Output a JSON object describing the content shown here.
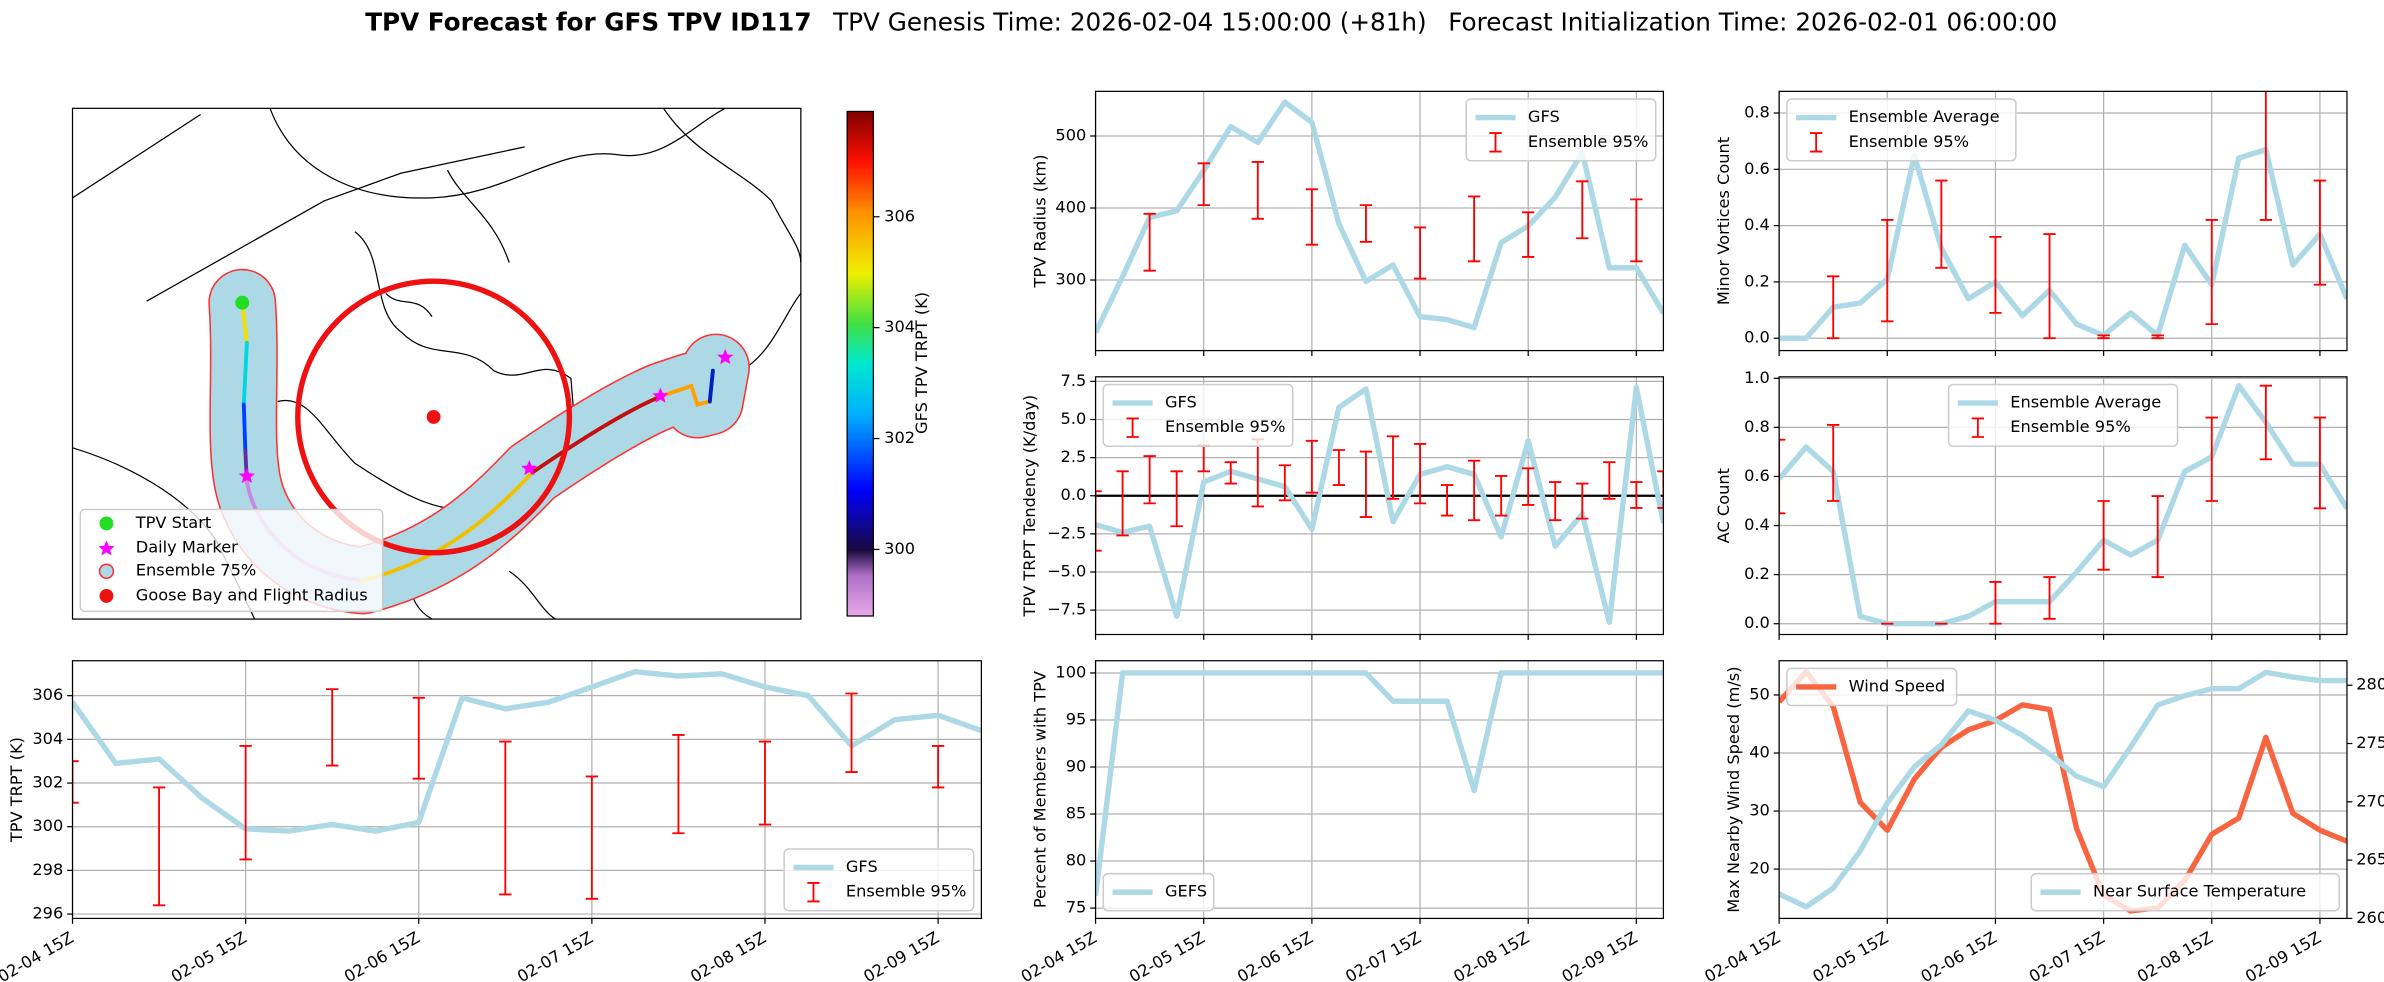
{
  "title": {
    "main": "TPV Forecast for GFS TPV ID117",
    "genesis": "TPV Genesis Time: 2026-02-04 15:00:00 (+81h)",
    "init": "Forecast Initialization Time: 2026-02-01 06:00:00"
  },
  "chart_data": [
    {
      "type": "map",
      "legend": [
        "TPV Start",
        "Daily Marker",
        "Ensemble 75%",
        "Goose Bay and Flight Radius"
      ],
      "colorbar": {
        "label": "GFS TPV TRPT (K)",
        "lim": [
          298.8,
          307.9
        ],
        "ticks": [
          300,
          302,
          304,
          306
        ]
      }
    },
    {
      "type": "line",
      "ylabel": "TPV Radius (km)",
      "grid": true,
      "legend": "upper right",
      "x": [
        "02-04 15Z",
        "02-04 21Z",
        "02-05 03Z",
        "02-05 09Z",
        "02-05 15Z",
        "02-05 21Z",
        "02-06 03Z",
        "02-06 09Z",
        "02-06 15Z",
        "02-06 21Z",
        "02-07 03Z",
        "02-07 09Z",
        "02-07 15Z",
        "02-07 21Z",
        "02-08 03Z",
        "02-08 09Z",
        "02-08 15Z",
        "02-08 21Z",
        "02-09 03Z",
        "02-09 09Z",
        "02-09 15Z",
        "02-09 21Z"
      ],
      "xlim": [
        "02-04 15Z",
        "02-09 21Z"
      ],
      "xticks": [
        "02-04 15Z",
        "02-05 15Z",
        "02-06 15Z",
        "02-07 15Z",
        "02-08 15Z",
        "02-09 15Z"
      ],
      "ylim": [
        202,
        562
      ],
      "yticks": [
        300,
        400,
        500
      ],
      "series": [
        {
          "name": "GFS",
          "color": "#add8e6",
          "values": [
            227,
            305,
            387,
            396,
            452,
            513,
            491,
            547,
            519,
            378,
            298,
            321,
            249,
            245,
            234,
            352,
            375,
            415,
            477,
            317,
            317,
            254
          ]
        }
      ],
      "errorbars": {
        "name": "Ensemble 95%",
        "color": "#ff0000",
        "x": [
          "02-05 03Z",
          "02-05 15Z",
          "02-06 03Z",
          "02-06 15Z",
          "02-07 03Z",
          "02-07 15Z",
          "02-08 03Z",
          "02-08 15Z",
          "02-09 03Z",
          "02-09 15Z"
        ],
        "lower": [
          313,
          404,
          385,
          349,
          353,
          302,
          326,
          332,
          358,
          326
        ],
        "upper": [
          392,
          462,
          464,
          426,
          404,
          373,
          416,
          394,
          437,
          412
        ]
      }
    },
    {
      "type": "line",
      "ylabel": "Minor Vortices Count",
      "grid": true,
      "legend": "upper left",
      "x": [
        "02-04 15Z",
        "02-04 21Z",
        "02-05 03Z",
        "02-05 09Z",
        "02-05 15Z",
        "02-05 21Z",
        "02-06 03Z",
        "02-06 09Z",
        "02-06 15Z",
        "02-06 21Z",
        "02-07 03Z",
        "02-07 09Z",
        "02-07 15Z",
        "02-07 21Z",
        "02-08 03Z",
        "02-08 09Z",
        "02-08 15Z",
        "02-08 21Z",
        "02-09 03Z",
        "02-09 09Z",
        "02-09 15Z",
        "02-09 21Z"
      ],
      "xlim": [
        "02-04 15Z",
        "02-09 21Z"
      ],
      "xticks": [
        "02-04 15Z",
        "02-05 15Z",
        "02-06 15Z",
        "02-07 15Z",
        "02-08 15Z",
        "02-09 15Z"
      ],
      "ylim": [
        -0.044,
        0.877
      ],
      "yticks": [
        {
          "value": 0,
          "label": "0.0"
        },
        0.2,
        0.4,
        0.6,
        0.8
      ],
      "series": [
        {
          "name": "Ensemble Average",
          "color": "#add8e6",
          "values": [
            0,
            0,
            0.11,
            0.125,
            0.21,
            0.65,
            0.32,
            0.14,
            0.2,
            0.08,
            0.17,
            0.05,
            0.01,
            0.09,
            0.01,
            0.33,
            0.19,
            0.64,
            0.67,
            0.26,
            0.37,
            0.14
          ]
        }
      ],
      "errorbars": {
        "name": "Ensemble 95%",
        "color": "#ff0000",
        "x": [
          "02-05 03Z",
          "02-05 15Z",
          "02-06 03Z",
          "02-06 15Z",
          "02-07 03Z",
          "02-07 15Z",
          "02-08 03Z",
          "02-08 15Z",
          "02-09 03Z",
          "02-09 15Z"
        ],
        "lower": [
          0,
          0.06,
          0.25,
          0.09,
          0,
          0,
          0,
          0.05,
          0.42,
          0.19
        ],
        "upper": [
          0.22,
          0.42,
          0.56,
          0.36,
          0.37,
          0.01,
          0.01,
          0.42,
          0.93,
          0.56
        ]
      }
    },
    {
      "type": "line",
      "ylabel": "TPV TRPT Tendency (K/day)",
      "grid": true,
      "legend": "upper left",
      "reference_line": 0,
      "x": [
        "02-04 15Z",
        "02-04 21Z",
        "02-05 03Z",
        "02-05 09Z",
        "02-05 15Z",
        "02-05 21Z",
        "02-06 03Z",
        "02-06 09Z",
        "02-06 15Z",
        "02-06 21Z",
        "02-07 03Z",
        "02-07 09Z",
        "02-07 15Z",
        "02-07 21Z",
        "02-08 03Z",
        "02-08 09Z",
        "02-08 15Z",
        "02-08 21Z",
        "02-09 03Z",
        "02-09 09Z",
        "02-09 15Z",
        "02-09 21Z"
      ],
      "xlim": [
        "02-04 15Z",
        "02-09 21Z"
      ],
      "xticks": [
        "02-04 15Z",
        "02-05 15Z",
        "02-06 15Z",
        "02-07 15Z",
        "02-08 15Z",
        "02-09 15Z"
      ],
      "ylim": [
        -9.1,
        7.8
      ],
      "yticks": [
        7.5,
        {
          "value": 5,
          "label": "5.0"
        },
        2.5,
        {
          "value": 0,
          "label": "0.0"
        },
        {
          "value": -2.5,
          "label": "−2.5"
        },
        {
          "value": -5,
          "label": "−5.0"
        },
        {
          "value": -7.5,
          "label": "−7.5"
        }
      ],
      "series": [
        {
          "name": "GFS",
          "color": "#add8e6",
          "values": [
            -1.9,
            -2.4,
            -2.0,
            -7.9,
            0.9,
            1.6,
            1.1,
            0.6,
            -2.2,
            5.8,
            7.0,
            -1.7,
            1.4,
            1.9,
            1.4,
            -2.7,
            3.6,
            -3.3,
            -1.2,
            -8.3,
            7.1,
            -1.8
          ]
        }
      ],
      "errorbars": {
        "name": "Ensemble 95%",
        "color": "#ff0000",
        "x": [
          "02-04 15Z",
          "02-04 21Z",
          "02-05 03Z",
          "02-05 09Z",
          "02-05 15Z",
          "02-05 21Z",
          "02-06 03Z",
          "02-06 09Z",
          "02-06 15Z",
          "02-06 21Z",
          "02-07 03Z",
          "02-07 09Z",
          "02-07 15Z",
          "02-07 21Z",
          "02-08 03Z",
          "02-08 09Z",
          "02-08 15Z",
          "02-08 21Z",
          "02-09 03Z",
          "02-09 09Z",
          "02-09 15Z",
          "02-09 21Z"
        ],
        "lower": [
          -3.6,
          -2.6,
          -0.5,
          -2.0,
          1.6,
          0.8,
          -0.7,
          -0.3,
          0.2,
          0.7,
          -1.4,
          -0.2,
          -0.5,
          -1.3,
          -1.6,
          -1.3,
          -0.6,
          -1.6,
          -1.5,
          -0.2,
          -0.8,
          -0.8
        ],
        "upper": [
          0.3,
          1.6,
          2.6,
          1.6,
          3.3,
          2.2,
          3.7,
          2.0,
          3.6,
          3.0,
          2.9,
          3.9,
          3.4,
          0.7,
          2.3,
          1.3,
          1.8,
          0.9,
          0.8,
          2.2,
          0.9,
          1.6
        ]
      }
    },
    {
      "type": "line",
      "ylabel": "AC Count",
      "grid": true,
      "legend": "upper center",
      "x": [
        "02-04 15Z",
        "02-04 21Z",
        "02-05 03Z",
        "02-05 09Z",
        "02-05 15Z",
        "02-05 21Z",
        "02-06 03Z",
        "02-06 09Z",
        "02-06 15Z",
        "02-06 21Z",
        "02-07 03Z",
        "02-07 09Z",
        "02-07 15Z",
        "02-07 21Z",
        "02-08 03Z",
        "02-08 09Z",
        "02-08 15Z",
        "02-08 21Z",
        "02-09 03Z",
        "02-09 09Z",
        "02-09 15Z",
        "02-09 21Z"
      ],
      "xlim": [
        "02-04 15Z",
        "02-09 21Z"
      ],
      "xticks": [
        "02-04 15Z",
        "02-05 15Z",
        "02-06 15Z",
        "02-07 15Z",
        "02-08 15Z",
        "02-09 15Z"
      ],
      "ylim": [
        -0.044,
        1.006
      ],
      "yticks": [
        {
          "value": 0,
          "label": "0.0"
        },
        0.2,
        0.4,
        0.6,
        0.8,
        {
          "value": 1,
          "label": "1.0"
        }
      ],
      "series": [
        {
          "name": "Ensemble Average",
          "color": "#add8e6",
          "values": [
            0.59,
            0.72,
            0.62,
            0.03,
            0,
            0,
            0,
            0.03,
            0.09,
            0.09,
            0.09,
            0.21,
            0.34,
            0.28,
            0.34,
            0.62,
            0.68,
            0.97,
            0.82,
            0.65,
            0.65,
            0.47
          ]
        }
      ],
      "errorbars": {
        "name": "Ensemble 95%",
        "color": "#ff0000",
        "x": [
          "02-04 15Z",
          "02-05 03Z",
          "02-05 15Z",
          "02-06 03Z",
          "02-06 15Z",
          "02-07 03Z",
          "02-07 15Z",
          "02-08 03Z",
          "02-08 15Z",
          "02-09 03Z",
          "02-09 15Z"
        ],
        "lower": [
          0.45,
          0.5,
          0,
          0,
          0,
          0.02,
          0.22,
          0.19,
          0.5,
          0.67,
          0.47
        ],
        "upper": [
          0.75,
          0.81,
          0,
          0,
          0.17,
          0.19,
          0.5,
          0.52,
          0.84,
          0.97,
          0.84
        ]
      }
    },
    {
      "type": "line",
      "ylabel": "TPV TRPT (K)",
      "grid": true,
      "legend": "lower right",
      "x": [
        "02-04 15Z",
        "02-04 21Z",
        "02-05 03Z",
        "02-05 09Z",
        "02-05 15Z",
        "02-05 21Z",
        "02-06 03Z",
        "02-06 09Z",
        "02-06 15Z",
        "02-06 21Z",
        "02-07 03Z",
        "02-07 09Z",
        "02-07 15Z",
        "02-07 21Z",
        "02-08 03Z",
        "02-08 09Z",
        "02-08 15Z",
        "02-08 21Z",
        "02-09 03Z",
        "02-09 09Z",
        "02-09 15Z",
        "02-09 21Z"
      ],
      "xlim": [
        "02-04 15Z",
        "02-09 21Z"
      ],
      "xticks": [
        "02-04 15Z",
        "02-05 15Z",
        "02-06 15Z",
        "02-07 15Z",
        "02-08 15Z",
        "02-09 15Z"
      ],
      "ylim": [
        295.8,
        307.6
      ],
      "yticks": [
        296,
        298,
        300,
        302,
        304,
        306
      ],
      "series": [
        {
          "name": "GFS",
          "color": "#add8e6",
          "values": [
            305.7,
            302.9,
            303.1,
            301.3,
            299.9,
            299.8,
            300.1,
            299.8,
            300.2,
            305.9,
            305.4,
            305.7,
            306.4,
            307.1,
            306.9,
            307.0,
            306.4,
            306.0,
            303.7,
            304.9,
            305.1,
            304.4
          ]
        }
      ],
      "errorbars": {
        "name": "Ensemble 95%",
        "color": "#ff0000",
        "x": [
          "02-04 15Z",
          "02-05 03Z",
          "02-05 15Z",
          "02-06 03Z",
          "02-06 15Z",
          "02-07 03Z",
          "02-07 15Z",
          "02-08 03Z",
          "02-08 15Z",
          "02-09 03Z",
          "02-09 15Z"
        ],
        "lower": [
          301.1,
          296.4,
          298.5,
          302.8,
          302.2,
          296.9,
          296.7,
          299.7,
          300.1,
          302.5,
          301.8
        ],
        "upper": [
          303.0,
          301.8,
          303.7,
          306.3,
          305.9,
          303.9,
          302.3,
          304.2,
          303.9,
          306.1,
          303.7
        ]
      }
    },
    {
      "type": "line",
      "ylabel": "Percent of Members with TPV",
      "grid": true,
      "legend": "lower left",
      "x": [
        "02-04 15Z",
        "02-04 21Z",
        "02-05 03Z",
        "02-05 09Z",
        "02-05 15Z",
        "02-05 21Z",
        "02-06 03Z",
        "02-06 09Z",
        "02-06 15Z",
        "02-06 21Z",
        "02-07 03Z",
        "02-07 09Z",
        "02-07 15Z",
        "02-07 21Z",
        "02-08 03Z",
        "02-08 09Z",
        "02-08 15Z",
        "02-08 21Z",
        "02-09 03Z",
        "02-09 09Z",
        "02-09 15Z",
        "02-09 21Z"
      ],
      "xlim": [
        "02-04 15Z",
        "02-09 21Z"
      ],
      "xticks": [
        "02-04 15Z",
        "02-05 15Z",
        "02-06 15Z",
        "02-07 15Z",
        "02-08 15Z",
        "02-09 15Z"
      ],
      "ylim": [
        73.9,
        101.3
      ],
      "yticks": [
        75,
        80,
        85,
        90,
        95,
        100
      ],
      "series": [
        {
          "name": "GEFS",
          "color": "#add8e6",
          "values": [
            76.3,
            100,
            100,
            100,
            100,
            100,
            100,
            100,
            100,
            100,
            100,
            97,
            97,
            97,
            87.5,
            100,
            100,
            100,
            100,
            100,
            100,
            100
          ]
        }
      ]
    },
    {
      "type": "line",
      "ylabel": "Max Nearby Wind Speed (m/s)",
      "y2label": "Near Surface Temperature (K)",
      "y2_color": "#4169e1",
      "grid": true,
      "x": [
        "02-04 15Z",
        "02-04 21Z",
        "02-05 03Z",
        "02-05 09Z",
        "02-05 15Z",
        "02-05 21Z",
        "02-06 03Z",
        "02-06 09Z",
        "02-06 15Z",
        "02-06 21Z",
        "02-07 03Z",
        "02-07 09Z",
        "02-07 15Z",
        "02-07 21Z",
        "02-08 03Z",
        "02-08 09Z",
        "02-08 15Z",
        "02-08 21Z",
        "02-09 03Z",
        "02-09 09Z",
        "02-09 15Z",
        "02-09 21Z"
      ],
      "xlim": [
        "02-04 15Z",
        "02-09 21Z"
      ],
      "xticks": [
        "02-04 15Z",
        "02-05 15Z",
        "02-06 15Z",
        "02-07 15Z",
        "02-08 15Z",
        "02-09 15Z"
      ],
      "ylim": [
        11.5,
        55.9
      ],
      "yticks": [
        20,
        30,
        40,
        50
      ],
      "y2lim": [
        260,
        282.1
      ],
      "y2ticks": [
        260,
        265,
        270,
        275,
        280
      ],
      "series": [
        {
          "name": "Wind Speed",
          "color": "#f8643f",
          "legend": "upper left",
          "values": [
            48.8,
            54,
            48,
            31.5,
            26.7,
            35.5,
            41,
            44,
            45.6,
            48.3,
            47.5,
            27,
            15.5,
            12.8,
            13.3,
            18,
            26,
            28.8,
            42.7,
            29.6,
            26.7,
            24.8
          ]
        },
        {
          "name": "Near Surface Temperature",
          "color": "#add8e6",
          "axis": "y2",
          "legend": "lower right",
          "values": [
            262.1,
            261,
            262.6,
            265.8,
            269.9,
            273,
            274.9,
            277.8,
            277,
            275.7,
            274.1,
            272.2,
            271.3,
            274.7,
            278.3,
            279.1,
            279.7,
            279.7,
            281.1,
            280.7,
            280.4,
            280.4
          ]
        }
      ]
    }
  ]
}
